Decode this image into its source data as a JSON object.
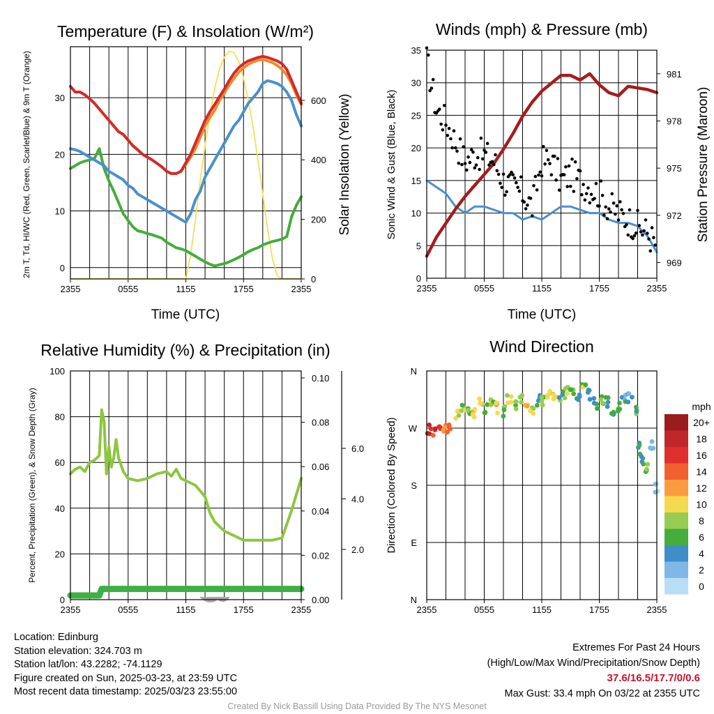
{
  "colors": {
    "red": "#d42a2a",
    "orange": "#f08a2c",
    "blue": "#4a90cc",
    "green": "#44ad3c",
    "yellow": "#f5df56",
    "maroon": "#a51c1c",
    "black": "#000000",
    "rh_green": "#8dc63f",
    "precip_green": "#3cb043",
    "snow_gray": "#a8a8a8"
  },
  "chart_data": [
    {
      "type": "line",
      "title": "Temperature (F) & Insolation (W/m²)",
      "xlabel": "Time (UTC)",
      "ylabel_left": "2m T, Td, HI/WC (Red, Green, Scarlet/Blue) & 9m T (Orange)",
      "ylabel_right": "Solar Insolation (Yellow)",
      "x_ticks": [
        "2355",
        "0555",
        "1155",
        "1755",
        "2355"
      ],
      "ylim": [
        -2,
        39
      ],
      "y_ticks": [
        0,
        10,
        20,
        30
      ],
      "ylim_right": [
        0,
        780
      ],
      "y_ticks_right": [
        0,
        200,
        400,
        600
      ],
      "grid": true,
      "x_hours": [
        0,
        0.5,
        1,
        1.5,
        2,
        2.5,
        3,
        3.5,
        4,
        4.5,
        5,
        5.5,
        6,
        6.5,
        7,
        7.5,
        8,
        8.5,
        9,
        9.5,
        10,
        10.5,
        11,
        11.5,
        12,
        12.5,
        13,
        13.5,
        14,
        14.5,
        15,
        15.5,
        16,
        16.5,
        17,
        17.5,
        18,
        18.5,
        19,
        19.5,
        20,
        20.5,
        21,
        21.5,
        22,
        22.5,
        23,
        23.5,
        24
      ],
      "series": [
        {
          "name": "2m T",
          "color": "red",
          "values": [
            32,
            31,
            31,
            30.5,
            29.8,
            29,
            28,
            27,
            26,
            25,
            24,
            23.5,
            22.5,
            21.5,
            20.8,
            20,
            19.5,
            19,
            18.4,
            17.8,
            17,
            16.6,
            16.6,
            17,
            18.5,
            20,
            22,
            24,
            26,
            27.5,
            28.8,
            30.2,
            31.5,
            33,
            34.3,
            35.3,
            36,
            36.5,
            36.8,
            37.1,
            37.3,
            37.1,
            36.8,
            36.5,
            36,
            35,
            33,
            31,
            29
          ]
        },
        {
          "name": "9m T",
          "color": "orange",
          "values": [
            32,
            31,
            31,
            30.5,
            29.8,
            29,
            28,
            27,
            26,
            25,
            24,
            23.5,
            22.5,
            21.5,
            20.8,
            20,
            19.5,
            19,
            18.4,
            17.8,
            17,
            16.6,
            16.6,
            17,
            18.2,
            19.5,
            21,
            23,
            25,
            26.5,
            27.8,
            29.5,
            30.8,
            32.2,
            33.4,
            34.5,
            35.3,
            35.9,
            36.3,
            36.6,
            36.8,
            36.5,
            36.2,
            35.7,
            35,
            34,
            32.5,
            30.5,
            28.8
          ]
        },
        {
          "name": "HI/WC",
          "color": "blue",
          "values": [
            21,
            20.8,
            20.5,
            20,
            19.5,
            19,
            18.5,
            18,
            17,
            16.5,
            16,
            15.5,
            14.5,
            14,
            13,
            12.5,
            12,
            11.5,
            11,
            10.5,
            10,
            9.5,
            9,
            8.5,
            8,
            9.5,
            12,
            13.5,
            16,
            17.5,
            19,
            20.5,
            22,
            23.5,
            25,
            26,
            27.5,
            29,
            30,
            31,
            32.5,
            33,
            32.8,
            32.5,
            32,
            31,
            29.5,
            27,
            25
          ]
        },
        {
          "name": "2m Td",
          "color": "green",
          "values": [
            17.5,
            18,
            18.5,
            18.8,
            19,
            19.3,
            21,
            17.5,
            15.3,
            13.5,
            11.5,
            9.5,
            8.3,
            7.2,
            6.5,
            6.3,
            6,
            5.8,
            5.5,
            5.2,
            4.5,
            4,
            3.5,
            3.3,
            3,
            2.5,
            2,
            1.5,
            1,
            0.6,
            0.3,
            0.5,
            0.7,
            1,
            1.4,
            1.8,
            2.3,
            2.8,
            3.2,
            3.5,
            4,
            4.3,
            4.6,
            4.8,
            5,
            5.5,
            9,
            11,
            12.5
          ]
        },
        {
          "name": "Insolation",
          "color": "yellow",
          "axis": "right",
          "values": [
            0,
            0,
            0,
            0,
            0,
            0,
            0,
            0,
            0,
            0,
            0,
            0,
            0,
            0,
            0,
            0,
            0,
            0,
            0,
            0,
            0,
            0,
            0,
            0,
            0,
            80,
            200,
            330,
            450,
            550,
            640,
            705,
            745,
            765,
            760,
            730,
            675,
            600,
            510,
            400,
            285,
            170,
            70,
            10,
            0,
            0,
            0,
            0,
            0
          ]
        }
      ]
    },
    {
      "type": "line",
      "title": "Winds (mph) & Pressure (mb)",
      "xlabel": "Time (UTC)",
      "ylabel_left": "Sonic Wind & Gust (Blue, Black)",
      "ylabel_right": "Station Pressure (Maroon)",
      "x_ticks": [
        "2355",
        "0555",
        "1155",
        "1755",
        "2355"
      ],
      "ylim": [
        0,
        35
      ],
      "y_ticks": [
        0,
        5,
        10,
        15,
        20,
        25,
        30,
        35
      ],
      "ylim_right": [
        968.0,
        982.5
      ],
      "y_ticks_right": [
        969,
        972,
        975,
        978,
        981
      ],
      "grid": true,
      "x_hours": [
        0,
        1,
        2,
        3,
        4,
        5,
        6,
        7,
        8,
        9,
        10,
        11,
        12,
        13,
        14,
        15,
        16,
        17,
        18,
        19,
        20,
        21,
        22,
        23,
        24
      ],
      "series": [
        {
          "name": "Sonic Wind",
          "color": "blue",
          "values": [
            15,
            14,
            13,
            11,
            10,
            11,
            11,
            10.5,
            10,
            10,
            9,
            9.5,
            9,
            10,
            11,
            11,
            10.5,
            10,
            10,
            9,
            8.5,
            8.5,
            8,
            6.5,
            4
          ]
        },
        {
          "name": "Gust",
          "color": "black",
          "marker": "dot",
          "values": [
            33.4,
            26,
            24,
            21,
            18,
            19,
            19,
            18,
            15,
            14,
            13,
            11,
            18,
            18,
            15,
            16,
            15,
            14,
            13,
            11,
            10,
            9,
            8,
            7,
            5
          ]
        },
        {
          "name": "Station Pressure",
          "color": "maroon",
          "values": [
            969.4,
            970.6,
            971.5,
            972.4,
            973.2,
            973.9,
            974.6,
            975.3,
            976.2,
            977.2,
            978.3,
            979.2,
            979.9,
            980.4,
            980.9,
            980.9,
            980.6,
            981.0,
            980.3,
            979.8,
            979.6,
            980.2,
            980.1,
            980.0,
            979.8
          ]
        }
      ]
    },
    {
      "type": "line",
      "title": "Relative Humidity (%) & Precipitation (in)",
      "xlabel": "",
      "ylabel_left": "Percent, Precipitation (Green), & Snow Depth (Gray)",
      "x_ticks": [
        "2355",
        "0555",
        "1155",
        "1755",
        "2355"
      ],
      "ylim": [
        0,
        100
      ],
      "y_ticks": [
        0,
        20,
        40,
        60,
        80,
        100
      ],
      "precip_ticks": [
        "0.00",
        "0.02",
        "0.04",
        "0.06",
        "0.08",
        "0.10"
      ],
      "snow_ticks": [
        "2.0",
        "4.0",
        "6.0"
      ],
      "grid": true,
      "x_hours": [
        0,
        0.5,
        1,
        1.5,
        2,
        2.5,
        3,
        3.25,
        3.5,
        3.75,
        4,
        4.25,
        4.5,
        4.75,
        5,
        5.5,
        6,
        7,
        8,
        9,
        10,
        10.5,
        11,
        11.5,
        12,
        13,
        14,
        14.5,
        15,
        15.5,
        16,
        16.5,
        17,
        17.5,
        18,
        19,
        20,
        21,
        22,
        22.5,
        23,
        23.5,
        24
      ],
      "series": [
        {
          "name": "RH",
          "color": "rh_green",
          "values": [
            55,
            57,
            58,
            56,
            60,
            61,
            63,
            83,
            78,
            55,
            67,
            58,
            62,
            70,
            62,
            56,
            53,
            52,
            53,
            55,
            56,
            54,
            57,
            53,
            52,
            50,
            45,
            38,
            34,
            32,
            30,
            29,
            28,
            27,
            26,
            26,
            26,
            26,
            27,
            33,
            39,
            46,
            53
          ]
        },
        {
          "name": "Precipitation",
          "color": "precip_green",
          "values": [
            0,
            0,
            0,
            0,
            0,
            0,
            0,
            0.003,
            0.003,
            0.003,
            0.003,
            0.003,
            0.003,
            0.003,
            0.003,
            0.003,
            0.003,
            0.003,
            0.003,
            0.003,
            0.003,
            0.003,
            0.003,
            0.003,
            0.003,
            0.003,
            0.003,
            0.003,
            0.003,
            0.003,
            0.003,
            0.003,
            0.003,
            0.003,
            0.003,
            0.003,
            0.003,
            0.003,
            0.003,
            0.003,
            0.003,
            0.003,
            0.003
          ]
        }
      ]
    },
    {
      "type": "scatter",
      "title": "Wind Direction",
      "ylabel": "Direction (Colored By Speed)",
      "x_ticks": [
        "2355",
        "0555",
        "1155",
        "1755",
        "2355"
      ],
      "y_ticks": [
        "N",
        "E",
        "S",
        "W",
        "N"
      ],
      "ylim": [
        0,
        360
      ],
      "grid": true,
      "colorbar_title": "mph",
      "colorbar_labels": [
        "20+",
        "18",
        "16",
        "14",
        "12",
        "10",
        "8",
        "6",
        "4",
        "2",
        "0"
      ],
      "colorbar_colors": [
        "#9b1c1c",
        "#c0262a",
        "#e02f2c",
        "#f1602f",
        "#fb9b3f",
        "#f4d951",
        "#96cc52",
        "#44ad3c",
        "#3f8ec8",
        "#7fb8e6",
        "#b8def6"
      ],
      "x_hours": [
        0.3,
        0.8,
        1.3,
        1.8,
        2.3,
        3.2,
        3.8,
        4.4,
        5.0,
        5.6,
        6.2,
        6.8,
        7.4,
        8.0,
        8.6,
        9.2,
        9.8,
        10.4,
        11.0,
        11.6,
        12.2,
        12.8,
        13.4,
        14.0,
        14.6,
        15.2,
        15.8,
        16.4,
        17.0,
        17.6,
        18.2,
        18.8,
        19.4,
        20.0,
        20.6,
        21.2,
        21.8,
        22.2,
        22.6,
        23.0,
        23.5,
        23.9
      ],
      "values": [
        268,
        262,
        265,
        271,
        267,
        292,
        304,
        300,
        296,
        312,
        300,
        308,
        302,
        297,
        314,
        306,
        318,
        302,
        300,
        314,
        310,
        320,
        316,
        322,
        326,
        322,
        318,
        330,
        322,
        308,
        315,
        310,
        298,
        305,
        316,
        318,
        295,
        238,
        222,
        208,
        240,
        175
      ],
      "speeds": [
        18,
        17,
        16,
        14,
        16,
        10,
        9,
        8,
        12,
        10,
        7,
        9,
        11,
        8,
        10,
        7,
        9,
        12,
        10,
        6,
        8,
        11,
        9,
        7,
        10,
        8,
        6,
        9,
        7,
        6,
        8,
        5,
        6,
        8,
        5,
        4,
        7,
        6,
        6,
        8,
        3,
        2
      ]
    }
  ],
  "info": {
    "location": "Location: Edinburg",
    "elevation": "Station elevation: 324.703 m",
    "latlon": "Station lat/lon: 43.2282; -74.1129",
    "created": "Figure created on Sun, 2025-03-23, at 23:59 UTC",
    "recent": "Most recent data timestamp: 2025/03/23 23:55:00"
  },
  "extremes": {
    "title": "Extremes For Past 24 Hours",
    "subtitle": "(High/Low/Max Wind/Precipitation/Snow Depth)",
    "values": "37.6/16.5/17.7/0/0.6",
    "max_gust": "Max Gust: 33.4 mph On 03/22 at 2355 UTC"
  },
  "credit": "Created By Nick Bassill Using Data Provided By The NYS Mesonet"
}
